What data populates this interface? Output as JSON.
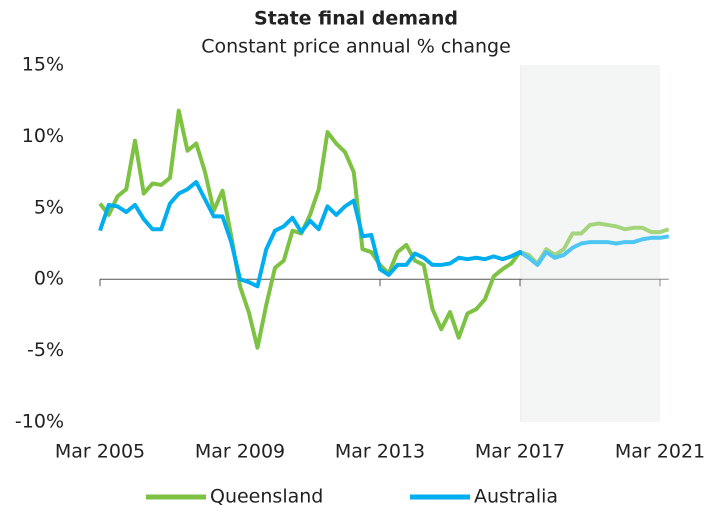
{
  "chart_data": {
    "type": "line",
    "title": "State final demand",
    "subtitle": "Constant price annual % change",
    "categories": [
      "Mar 2005",
      null,
      null,
      null,
      null,
      null,
      null,
      null,
      null,
      null,
      null,
      null,
      null,
      null,
      null,
      null,
      "Mar 2009",
      null,
      null,
      null,
      null,
      null,
      null,
      null,
      null,
      null,
      null,
      null,
      null,
      null,
      null,
      null,
      "Mar 2013",
      null,
      null,
      null,
      null,
      null,
      null,
      null,
      null,
      null,
      null,
      null,
      null,
      null,
      null,
      null,
      "Mar 2017",
      null,
      null,
      null,
      null,
      null,
      null,
      null,
      null,
      null,
      null,
      null,
      null,
      null,
      null,
      null,
      "Mar 2021",
      null
    ],
    "series": [
      {
        "name": "Queensland",
        "color": "#7dc242",
        "values": [
          5.3,
          4.5,
          5.8,
          6.3,
          9.7,
          6.0,
          6.7,
          6.6,
          7.1,
          11.8,
          9.0,
          9.5,
          7.5,
          4.8,
          6.2,
          3.0,
          -0.5,
          -2.3,
          -4.8,
          -1.8,
          0.8,
          1.3,
          3.4,
          3.2,
          4.5,
          6.3,
          10.3,
          9.5,
          8.9,
          7.5,
          2.1,
          1.9,
          1.0,
          0.4,
          1.9,
          2.4,
          1.3,
          1.0,
          -2.1,
          -3.5,
          -2.3,
          -4.1,
          -2.4,
          -2.1,
          -1.4,
          0.2,
          0.7,
          1.1,
          1.9,
          1.7,
          1.1,
          2.1,
          1.7,
          2.1,
          3.2,
          3.2,
          3.8,
          3.9,
          3.8,
          3.7,
          3.5,
          3.6,
          3.6,
          3.3,
          3.3,
          3.5
        ]
      },
      {
        "name": "Australia",
        "color": "#00aeef",
        "values": [
          3.4,
          5.2,
          5.1,
          4.7,
          5.2,
          4.2,
          3.5,
          3.5,
          5.3,
          6.0,
          6.3,
          6.8,
          5.6,
          4.4,
          4.4,
          2.6,
          0.0,
          -0.2,
          -0.5,
          2.1,
          3.4,
          3.7,
          4.3,
          3.3,
          4.1,
          3.5,
          5.1,
          4.5,
          5.1,
          5.5,
          3.0,
          3.1,
          0.7,
          0.3,
          1.0,
          1.0,
          1.8,
          1.5,
          1.0,
          1.0,
          1.1,
          1.5,
          1.4,
          1.5,
          1.4,
          1.6,
          1.4,
          1.6,
          1.9,
          1.5,
          1.0,
          1.9,
          1.5,
          1.7,
          2.2,
          2.5,
          2.6,
          2.6,
          2.6,
          2.5,
          2.6,
          2.6,
          2.8,
          2.9,
          2.9,
          3.0
        ]
      }
    ],
    "shaded_region": [
      "Mar 2017",
      "Mar 2021"
    ],
    "ylim": [
      -10,
      15
    ],
    "yticks": [
      {
        "value": 15,
        "label": "15%"
      },
      {
        "value": 10,
        "label": "10%"
      },
      {
        "value": 5,
        "label": "5%"
      },
      {
        "value": 0,
        "label": "0%"
      },
      {
        "value": -5,
        "label": "-5%"
      },
      {
        "value": -10,
        "label": "-10%"
      }
    ],
    "grid": false,
    "legend": "bottom"
  }
}
